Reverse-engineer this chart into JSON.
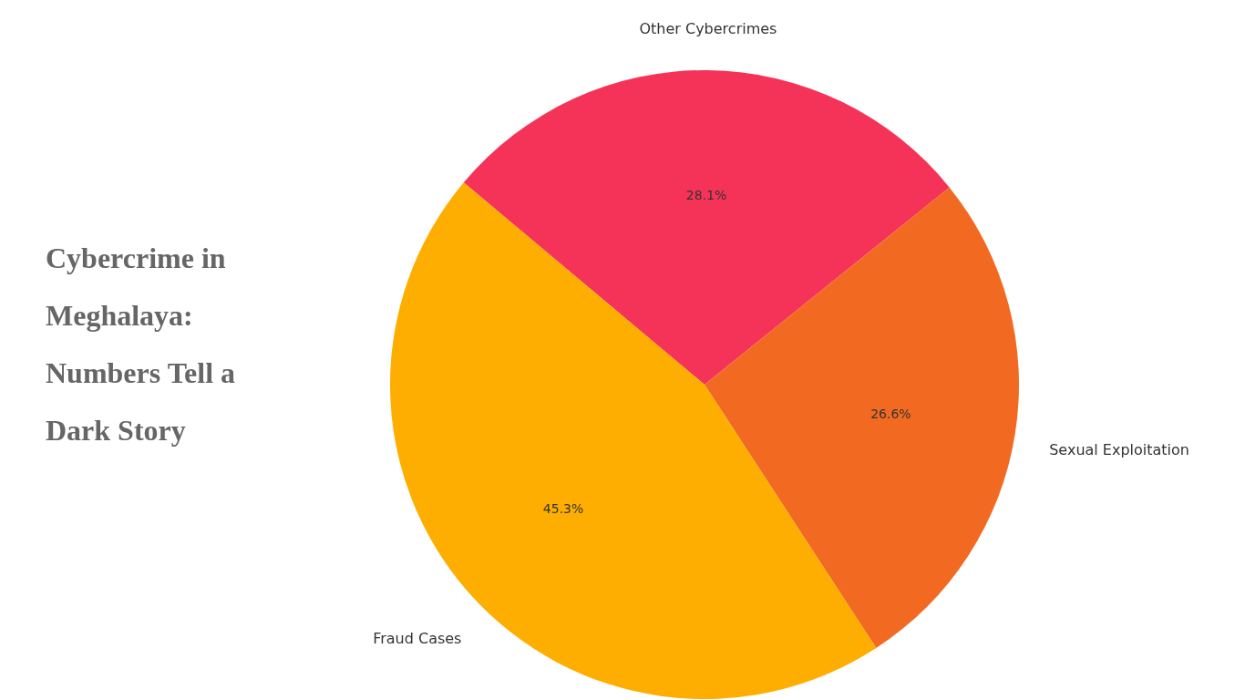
{
  "chart_data": {
    "type": "pie",
    "title": "Cybercrime in Meghalaya: Numbers Tell a Dark Story",
    "categories": [
      "Fraud Cases",
      "Sexual Exploitation",
      "Other Cybercrimes"
    ],
    "values": [
      45.3,
      26.6,
      28.1
    ],
    "value_labels": [
      "45.3%",
      "26.6%",
      "28.1%"
    ],
    "colors": [
      "#fdae00",
      "#f26a22",
      "#f53358"
    ]
  }
}
